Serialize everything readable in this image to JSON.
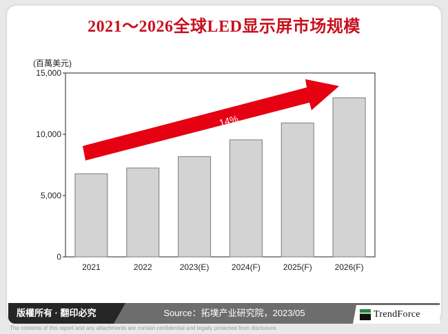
{
  "header": {
    "title": "2021～2026全球LED显示屏市场规模"
  },
  "chart_data": {
    "type": "bar",
    "title": "2021～2026全球LED显示屏市场规模",
    "ylabel": "(百萬美元)",
    "xlabel": "",
    "categories": [
      "2021",
      "2022",
      "2023(E)",
      "2024(F)",
      "2025(F)",
      "2026(F)"
    ],
    "values": [
      6780,
      7250,
      8180,
      9550,
      10920,
      12980
    ],
    "ylim": [
      0,
      15000
    ],
    "yticks": [
      "0",
      "5,000",
      "10,000",
      "15,000"
    ],
    "ytick_values": [
      0,
      5000,
      10000,
      15000
    ],
    "annotation": "14%",
    "grid": false,
    "colors": {
      "bar": "#d3d3d3",
      "bar_border": "#7a7a7a",
      "arrow": "#e50012",
      "title": "#c8101e"
    }
  },
  "footer": {
    "copyright": "版權所有 · 翻印必究",
    "source": "Source：拓墣产业研究院，2023/05",
    "brand": "TrendForce",
    "disclaimer": "The contents of this report and any attachments are contain confidential and legally protected from disclosure."
  }
}
